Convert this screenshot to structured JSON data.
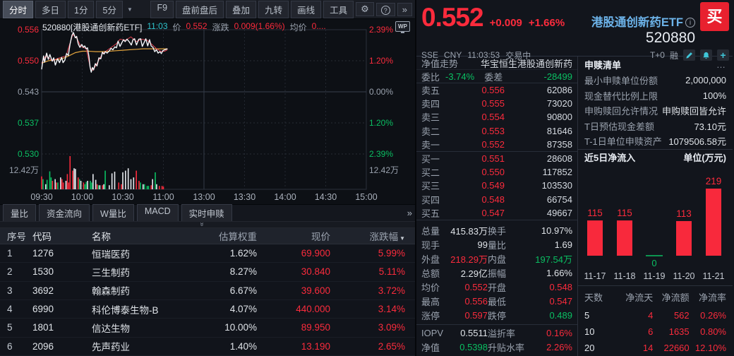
{
  "palette": {
    "red": "#fb2b3c",
    "green": "#0abf62",
    "white": "#dfe3e8",
    "gray": "#9aa2ae",
    "yellow": "#e2a33d",
    "teal": "#3fc6d8",
    "blue": "#6cb2e8",
    "line_white": "#f4f6f9",
    "line_red": "#e04150"
  },
  "toolbar": {
    "tabs": [
      "分时",
      "多日",
      "1分",
      "5分"
    ],
    "active_tab": "分时",
    "buttons": [
      "F9",
      "盘前盘后",
      "叠加",
      "九转",
      "画线",
      "工具"
    ],
    "gear": "⚙",
    "help": "?",
    "more": "»",
    "caret": "▼"
  },
  "chart_header": {
    "code_name": "520880[港股通创新药ETF]",
    "time": "11:03",
    "price_label": "价",
    "price": "0.552",
    "change_label": "涨跌",
    "change": "0.009(1.66%)",
    "avg_label": "均价",
    "avg": "0....",
    "wp": "WP"
  },
  "chart_data": [
    {
      "type": "line",
      "title": "分时走势 520880 港股通创新药ETF",
      "x_ticks": [
        "09:30",
        "10:00",
        "10:30",
        "11:00",
        "13:00",
        "13:30",
        "14:00",
        "14:30",
        "15:00"
      ],
      "left_axis": [
        [
          "0.556",
          "r"
        ],
        [
          "0.550",
          "r"
        ],
        [
          "0.543",
          "gy"
        ],
        [
          "0.537",
          "g"
        ],
        [
          "0.530",
          "g"
        ],
        [
          "12.42万",
          "gy"
        ]
      ],
      "right_axis": [
        [
          "2.39%",
          "r"
        ],
        [
          "1.20%",
          "r"
        ],
        [
          "0.00%",
          "gy"
        ],
        [
          "1.20%",
          "g"
        ],
        [
          "2.39%",
          "g"
        ],
        [
          "12.42万",
          "gy"
        ]
      ],
      "prev_close": 0.543,
      "ylim": [
        0.53,
        0.556
      ],
      "session_minutes": 240,
      "series": [
        {
          "name": "price",
          "points": [
            [
              0,
              0.5477
            ],
            [
              1.4,
              0.5505
            ],
            [
              2.2,
              0.5492
            ],
            [
              3.7,
              0.5511
            ],
            [
              4.9,
              0.5498
            ],
            [
              6.1,
              0.5508
            ],
            [
              7.8,
              0.5494
            ],
            [
              8.9,
              0.5501
            ],
            [
              10.1,
              0.5486
            ],
            [
              11.8,
              0.5499
            ],
            [
              13.2,
              0.5491
            ],
            [
              14.8,
              0.5502
            ],
            [
              15.8,
              0.5491
            ],
            [
              17.1,
              0.5496
            ],
            [
              18.4,
              0.551
            ],
            [
              19.7,
              0.5506
            ],
            [
              21,
              0.553
            ],
            [
              22.4,
              0.5548
            ],
            [
              23.5,
              0.5554
            ],
            [
              24.9,
              0.5543
            ],
            [
              25.9,
              0.5546
            ],
            [
              27.1,
              0.553
            ],
            [
              28.3,
              0.5523
            ],
            [
              29.7,
              0.5529
            ],
            [
              30.9,
              0.5523
            ],
            [
              31.8,
              0.5526
            ],
            [
              32.9,
              0.552
            ],
            [
              33.9,
              0.5522
            ],
            [
              35,
              0.5503
            ],
            [
              35.8,
              0.5482
            ],
            [
              36.7,
              0.5471
            ],
            [
              37.6,
              0.5481
            ],
            [
              38.4,
              0.5476
            ],
            [
              39.7,
              0.5489
            ],
            [
              40.9,
              0.5484
            ],
            [
              42.3,
              0.5501
            ],
            [
              43.7,
              0.5499
            ],
            [
              44.9,
              0.5513
            ],
            [
              46.1,
              0.5509
            ],
            [
              47.1,
              0.5514
            ],
            [
              48.4,
              0.5511
            ],
            [
              50.1,
              0.5516
            ],
            [
              51.3,
              0.5521
            ],
            [
              52.7,
              0.5518
            ],
            [
              54.1,
              0.5524
            ],
            [
              55.3,
              0.5522
            ],
            [
              56.5,
              0.5536
            ],
            [
              57.9,
              0.5525
            ],
            [
              59.3,
              0.5533
            ],
            [
              60.5,
              0.5539
            ],
            [
              61.7,
              0.5535
            ],
            [
              63.1,
              0.554
            ],
            [
              64.9,
              0.5534
            ],
            [
              66.3,
              0.5528
            ],
            [
              67.5,
              0.5539
            ],
            [
              68.7,
              0.5541
            ],
            [
              70.1,
              0.5528
            ],
            [
              71.8,
              0.554
            ],
            [
              73.2,
              0.5541
            ],
            [
              74.4,
              0.5525
            ],
            [
              75.7,
              0.5533
            ],
            [
              77,
              0.5541
            ],
            [
              78.4,
              0.5526
            ],
            [
              79.8,
              0.5539
            ],
            [
              80.9,
              0.5526
            ],
            [
              82.3,
              0.5523
            ],
            [
              83.6,
              0.5514
            ],
            [
              84.9,
              0.5518
            ],
            [
              86.1,
              0.5511
            ],
            [
              87.5,
              0.5514
            ],
            [
              88.5,
              0.551
            ],
            [
              89.6,
              0.5516
            ],
            [
              91,
              0.5518
            ],
            [
              93,
              0.552
            ]
          ]
        },
        {
          "name": "iopv",
          "points": [
            [
              0,
              0.549
            ],
            [
              3,
              0.5505
            ],
            [
              8,
              0.5495
            ],
            [
              12,
              0.55
            ],
            [
              18,
              0.5505
            ],
            [
              23,
              0.555
            ],
            [
              26,
              0.5542
            ],
            [
              29,
              0.5525
            ],
            [
              33,
              0.552
            ],
            [
              36,
              0.548
            ],
            [
              38,
              0.5475
            ],
            [
              41,
              0.549
            ],
            [
              45,
              0.551
            ],
            [
              50,
              0.552
            ],
            [
              55,
              0.553
            ],
            [
              58,
              0.554
            ],
            [
              62,
              0.5538
            ],
            [
              66,
              0.5545
            ],
            [
              70,
              0.5535
            ],
            [
              74,
              0.554
            ],
            [
              78,
              0.5538
            ],
            [
              82,
              0.5528
            ],
            [
              85,
              0.552
            ],
            [
              88,
              0.5515
            ],
            [
              91,
              0.5515
            ],
            [
              93,
              0.5518
            ]
          ]
        },
        {
          "name": "avg",
          "points": [
            [
              0,
              0.549
            ],
            [
              5,
              0.5495
            ],
            [
              10,
              0.5497
            ],
            [
              15,
              0.5499
            ],
            [
              20,
              0.5505
            ],
            [
              25,
              0.5512
            ],
            [
              30,
              0.5515
            ],
            [
              35,
              0.5515
            ],
            [
              40,
              0.5514
            ],
            [
              45,
              0.5514
            ],
            [
              50,
              0.5515
            ],
            [
              55,
              0.5516
            ],
            [
              60,
              0.5517
            ],
            [
              65,
              0.5518
            ],
            [
              70,
              0.5519
            ],
            [
              75,
              0.552
            ],
            [
              80,
              0.552
            ],
            [
              85,
              0.552
            ],
            [
              90,
              0.552
            ],
            [
              93,
              0.552
            ]
          ]
        }
      ],
      "volume_max_label": "12.42万",
      "volume": [
        [
          0,
          0.38,
          "r"
        ],
        [
          1,
          0.3,
          "g"
        ],
        [
          3,
          0.15,
          "w"
        ],
        [
          4,
          0.28,
          "g"
        ],
        [
          6,
          0.53,
          "g"
        ],
        [
          7,
          0.35,
          "g"
        ],
        [
          8,
          0.25,
          "r"
        ],
        [
          10,
          0.3,
          "w"
        ],
        [
          11,
          0.2,
          "r"
        ],
        [
          12,
          0.2,
          "g"
        ],
        [
          14,
          0.35,
          "w"
        ],
        [
          15,
          0.3,
          "r"
        ],
        [
          16,
          0.2,
          "r"
        ],
        [
          18,
          0.25,
          "w"
        ],
        [
          19,
          0.45,
          "r"
        ],
        [
          20,
          0.2,
          "r"
        ],
        [
          21,
          0.98,
          "r"
        ],
        [
          23,
          0.55,
          "r"
        ],
        [
          24,
          0.62,
          "w"
        ],
        [
          25,
          0.6,
          "w"
        ],
        [
          27,
          0.35,
          "r"
        ],
        [
          28,
          0.3,
          "g"
        ],
        [
          29,
          0.25,
          "w"
        ],
        [
          31,
          0.2,
          "r"
        ],
        [
          32,
          0.15,
          "g"
        ],
        [
          33,
          0.22,
          "g"
        ],
        [
          34,
          0.25,
          "w"
        ],
        [
          36,
          0.25,
          "g"
        ],
        [
          37,
          0.2,
          "g"
        ],
        [
          38,
          0.45,
          "w"
        ],
        [
          40,
          0.28,
          "w"
        ],
        [
          41,
          0.15,
          "r"
        ],
        [
          42,
          0.12,
          "g"
        ],
        [
          43,
          0.12,
          "w"
        ],
        [
          45,
          0.12,
          "r"
        ],
        [
          46,
          0.15,
          "w"
        ],
        [
          47,
          0.55,
          "g"
        ],
        [
          50,
          0.12,
          "w"
        ],
        [
          52,
          0.47,
          "w"
        ],
        [
          54,
          0.52,
          "w"
        ],
        [
          57,
          0.2,
          "r"
        ],
        [
          59,
          0.15,
          "r"
        ],
        [
          60,
          0.5,
          "w"
        ],
        [
          62,
          0.55,
          "w"
        ],
        [
          64,
          0.62,
          "w"
        ],
        [
          66,
          0.3,
          "w"
        ],
        [
          68,
          0.35,
          "w"
        ],
        [
          70,
          0.55,
          "r"
        ],
        [
          72,
          0.25,
          "r"
        ],
        [
          73,
          0.2,
          "g"
        ],
        [
          75,
          0.15,
          "w"
        ],
        [
          76,
          0.15,
          "g"
        ],
        [
          78,
          0.1,
          "g"
        ],
        [
          79,
          0.1,
          "g"
        ],
        [
          81,
          0.12,
          "r"
        ],
        [
          82,
          0.3,
          "w"
        ],
        [
          84,
          0.5,
          "g"
        ],
        [
          85,
          0.15,
          "w"
        ],
        [
          87,
          0.1,
          "r"
        ],
        [
          89,
          0.1,
          "r"
        ],
        [
          90,
          0.08,
          "r"
        ]
      ]
    },
    {
      "type": "bar",
      "title": "近5日净流入",
      "unit": "单位(万元)",
      "categories": [
        "11-17",
        "11-18",
        "11-19",
        "11-20",
        "11-21"
      ],
      "values": [
        115,
        115,
        0,
        113,
        219
      ],
      "ylim": [
        0,
        240
      ]
    }
  ],
  "subtabs": {
    "items": [
      "量比",
      "资金流向",
      "W量比",
      "MACD",
      "实时申赎"
    ],
    "more": "»",
    "collapse": "»"
  },
  "holdings": {
    "headers": [
      "序号",
      "代码",
      "名称",
      "估算权重",
      "现价",
      "涨跌幅"
    ],
    "sort_arrow": "▼",
    "rows": [
      [
        "1",
        "1276",
        "恒瑞医药",
        "1.62%",
        "69.900",
        "5.99%"
      ],
      [
        "2",
        "1530",
        "三生制药",
        "8.27%",
        "30.840",
        "5.11%"
      ],
      [
        "3",
        "3692",
        "翰森制药",
        "6.67%",
        "39.600",
        "3.72%"
      ],
      [
        "4",
        "6990",
        "科伦博泰生物-B",
        "4.07%",
        "440.000",
        "3.14%"
      ],
      [
        "5",
        "1801",
        "信达生物",
        "10.00%",
        "89.950",
        "3.09%"
      ],
      [
        "6",
        "2096",
        "先声药业",
        "1.40%",
        "13.190",
        "2.65%"
      ]
    ]
  },
  "quote": {
    "price": "0.552",
    "change": "+0.009",
    "change_pct": "+1.66%",
    "name": "港股通创新药ETF",
    "info": "i",
    "code": "520880",
    "buy_label": "买",
    "exchange": "SSE",
    "currency": "CNY",
    "time": "11:03:53",
    "status": "交易中",
    "tplus": "T+0",
    "margin": "融",
    "plus": "+"
  },
  "orderbook": {
    "nv_label": "净值走势",
    "nv_value": "华宝恒生港股通创新药",
    "wb_label": "委比",
    "wb_value": "-3.74%",
    "wc_label": "委差",
    "wc_value": "-28499",
    "asks": [
      {
        "label": "卖五",
        "price": "0.556",
        "vol": "62086"
      },
      {
        "label": "卖四",
        "price": "0.555",
        "vol": "73020"
      },
      {
        "label": "卖三",
        "price": "0.554",
        "vol": "90800"
      },
      {
        "label": "卖二",
        "price": "0.553",
        "vol": "81646"
      },
      {
        "label": "卖一",
        "price": "0.552",
        "vol": "87358"
      }
    ],
    "bids": [
      {
        "label": "买一",
        "price": "0.551",
        "vol": "28608"
      },
      {
        "label": "买二",
        "price": "0.550",
        "vol": "117852"
      },
      {
        "label": "买三",
        "price": "0.549",
        "vol": "103530"
      },
      {
        "label": "买四",
        "price": "0.548",
        "vol": "66754"
      },
      {
        "label": "买五",
        "price": "0.547",
        "vol": "49667"
      }
    ]
  },
  "stats": {
    "rows": [
      [
        "总量",
        "415.83万",
        "w",
        "换手",
        "10.97%",
        "w"
      ],
      [
        "现手",
        "99",
        "w",
        "量比",
        "1.69",
        "w"
      ],
      [
        "外盘",
        "218.29万",
        "r",
        "内盘",
        "197.54万",
        "g"
      ],
      [
        "总额",
        "2.29亿",
        "w",
        "振幅",
        "1.66%",
        "w"
      ],
      [
        "均价",
        "0.552",
        "r",
        "开盘",
        "0.548",
        "r"
      ],
      [
        "最高",
        "0.556",
        "r",
        "最低",
        "0.547",
        "r"
      ],
      [
        "涨停",
        "0.597",
        "r",
        "跌停",
        "0.489",
        "g"
      ],
      [
        "IOPV",
        "0.5511",
        "w",
        "溢折率",
        "0.16%",
        "r"
      ],
      [
        "净值",
        "0.5398",
        "g",
        "升贴水率",
        "2.26%",
        "r"
      ]
    ]
  },
  "subscription": {
    "title": "申赎清单",
    "menu": "…",
    "rows": [
      [
        "最小申赎单位份额",
        "2,000,000"
      ],
      [
        "现金替代比例上限",
        "100%"
      ],
      [
        "申购赎回允许情况",
        "申购赎回皆允许"
      ],
      [
        "T日预估现金差额",
        "73.10元"
      ],
      [
        "T-1日单位申赎资产",
        "1079506.58元"
      ]
    ]
  },
  "flow_table": {
    "headers": [
      "天数",
      "净流天",
      "净流额",
      "净流率"
    ],
    "rows": [
      [
        "5",
        "4",
        "562",
        "0.26%"
      ],
      [
        "10",
        "6",
        "1635",
        "0.80%"
      ],
      [
        "20",
        "14",
        "22660",
        "12.10%"
      ]
    ]
  }
}
